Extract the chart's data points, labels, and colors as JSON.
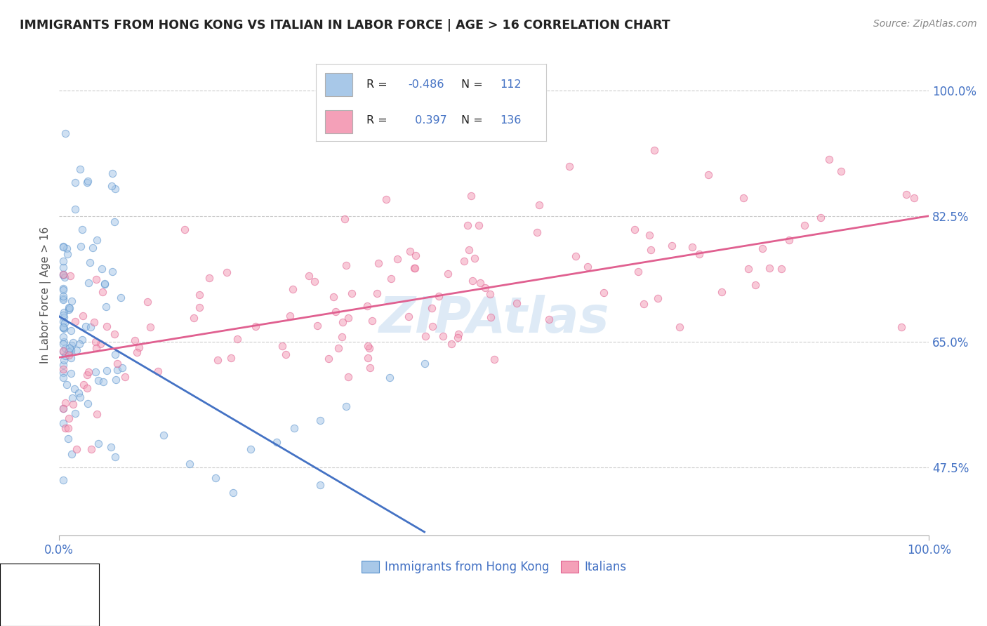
{
  "title": "IMMIGRANTS FROM HONG KONG VS ITALIAN IN LABOR FORCE | AGE > 16 CORRELATION CHART",
  "source": "Source: ZipAtlas.com",
  "ylabel": "In Labor Force | Age > 16",
  "xlim": [
    0.0,
    1.0
  ],
  "ylim": [
    0.38,
    1.05
  ],
  "ytick_positions": [
    0.475,
    0.65,
    0.825,
    1.0
  ],
  "ytick_labels": [
    "47.5%",
    "65.0%",
    "82.5%",
    "100.0%"
  ],
  "hk_R": -0.486,
  "hk_N": 112,
  "it_R": 0.397,
  "it_N": 136,
  "hk_color": "#a8c8e8",
  "it_color": "#f4a0b8",
  "hk_edge_color": "#5590cc",
  "it_edge_color": "#e06090",
  "hk_line_color": "#4472c4",
  "it_line_color": "#e06090",
  "legend_label_hk": "Immigrants from Hong Kong",
  "legend_label_it": "Italians",
  "watermark": "ZIPAtlas",
  "background_color": "#ffffff",
  "scatter_alpha": 0.55,
  "scatter_size": 55,
  "hk_line_start_x": 0.0,
  "hk_line_start_y": 0.685,
  "hk_line_end_x": 0.42,
  "hk_line_end_y": 0.385,
  "it_line_start_x": 0.0,
  "it_line_start_y": 0.628,
  "it_line_end_x": 1.0,
  "it_line_end_y": 0.825
}
